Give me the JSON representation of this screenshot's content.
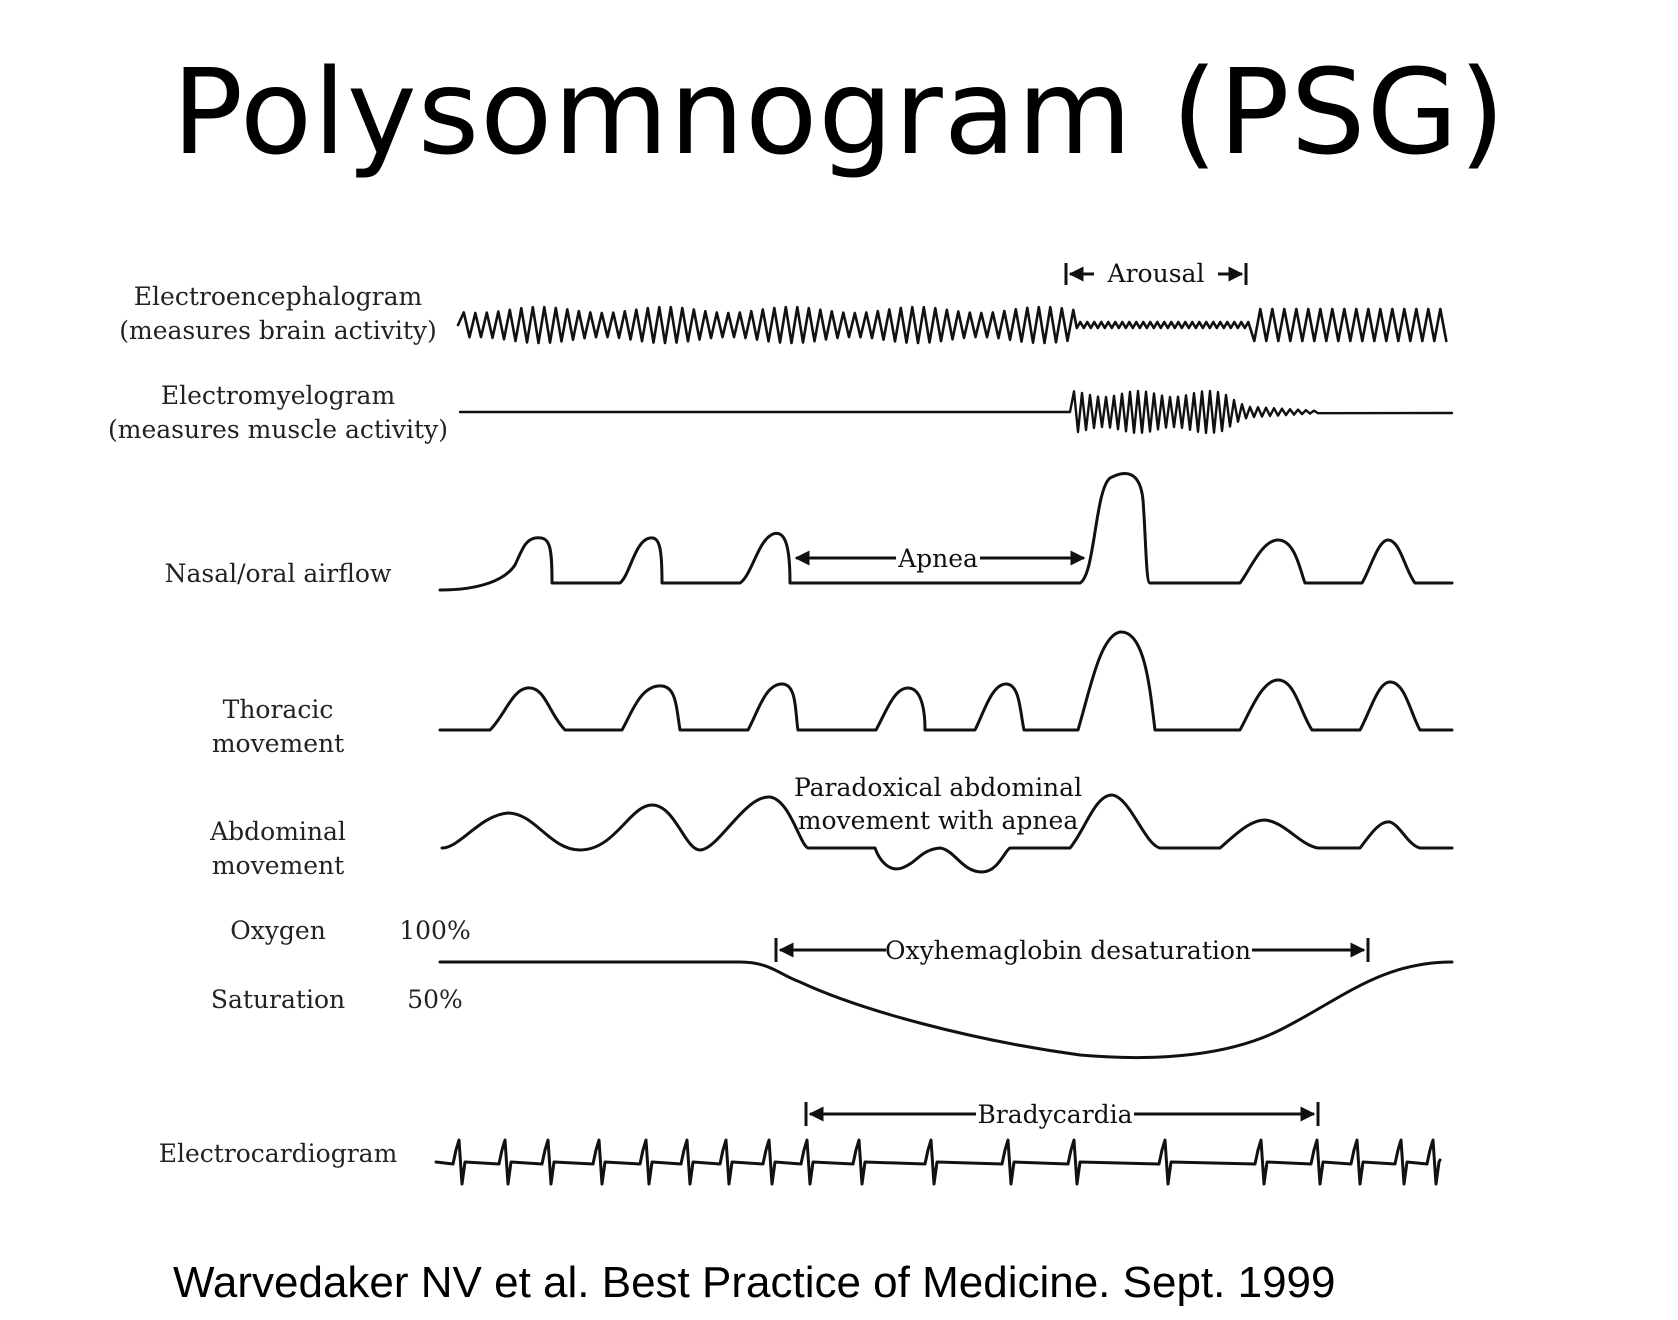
{
  "title": "Polysomnogram (PSG)",
  "citation": "Warvedaker NV et al. Best Practice of Medicine. Sept. 1999",
  "channels": {
    "eeg": {
      "line1": "Electroencephalogram",
      "line2": "(measures brain activity)"
    },
    "emg": {
      "line1": "Electromyelogram",
      "line2": "(measures muscle activity)"
    },
    "airflow": {
      "line1": "Nasal/oral airflow"
    },
    "thoracic": {
      "line1": "Thoracic",
      "line2": "movement"
    },
    "abdominal": {
      "line1": "Abdominal",
      "line2": "movement"
    },
    "oxygen": {
      "line1": "Oxygen",
      "line2": "Saturation",
      "scale_high": "100%",
      "scale_low": "50%"
    },
    "ecg": {
      "line1": "Electrocardiogram"
    }
  },
  "annotations": {
    "arousal": "Arousal",
    "apnea": "Apnea",
    "paradoxical_line1": "Paradoxical abdominal",
    "paradoxical_line2": "movement with apnea",
    "desaturation": "Oxyhemaglobin desaturation",
    "bradycardia": "Bradycardia"
  }
}
